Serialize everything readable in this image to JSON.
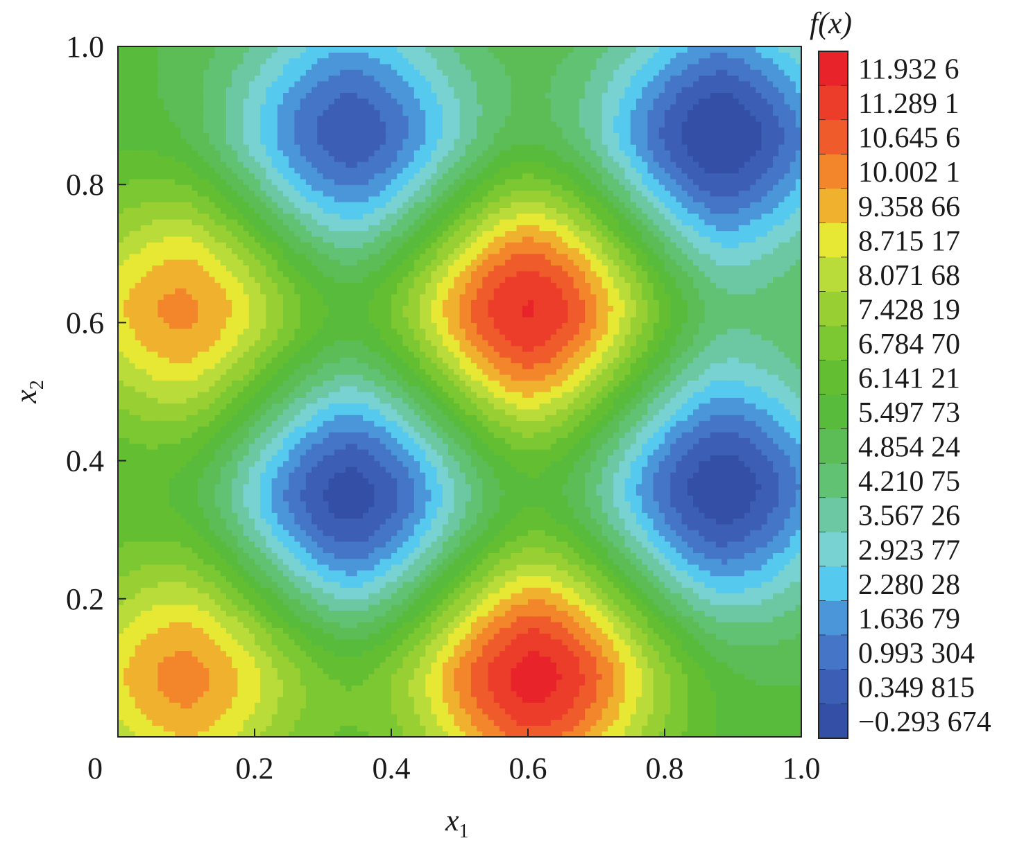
{
  "chart_data": {
    "type": "heatmap",
    "title": "",
    "xlabel": {
      "main": "x",
      "sub": "1"
    },
    "ylabel": {
      "main": "x",
      "sub": "2"
    },
    "colorbar_title": "f(x)",
    "xlim": [
      0,
      1.0
    ],
    "ylim": [
      0,
      1.0
    ],
    "x_ticks": [
      {
        "value": 0,
        "label": "0"
      },
      {
        "value": 0.2,
        "label": "0.2"
      },
      {
        "value": 0.4,
        "label": "0.4"
      },
      {
        "value": 0.6,
        "label": "0.6"
      },
      {
        "value": 0.8,
        "label": "0.8"
      },
      {
        "value": 1.0,
        "label": "1.0"
      }
    ],
    "y_ticks": [
      {
        "value": 0.2,
        "label": "0.2"
      },
      {
        "value": 0.4,
        "label": "0.4"
      },
      {
        "value": 0.6,
        "label": "0.6"
      },
      {
        "value": 0.8,
        "label": "0.8"
      },
      {
        "value": 1.0,
        "label": "1.0"
      }
    ],
    "colorbar_levels": [
      {
        "value": 11.9326,
        "label": "11.932 6",
        "color": "#e8242a"
      },
      {
        "value": 11.2891,
        "label": "11.289 1",
        "color": "#ec3d2b"
      },
      {
        "value": 10.6456,
        "label": "10.645 6",
        "color": "#ef5b2a"
      },
      {
        "value": 10.0021,
        "label": "10.002 1",
        "color": "#f3852b"
      },
      {
        "value": 9.35866,
        "label": "9.358 66",
        "color": "#f0b22e"
      },
      {
        "value": 8.71517,
        "label": "8.715 17",
        "color": "#e7e834"
      },
      {
        "value": 8.07168,
        "label": "8.071 68",
        "color": "#b9dc3a"
      },
      {
        "value": 7.42819,
        "label": "7.428 19",
        "color": "#98cf33"
      },
      {
        "value": 6.7847,
        "label": "6.784 70",
        "color": "#7cc832"
      },
      {
        "value": 6.14121,
        "label": "6.141 21",
        "color": "#63bf31"
      },
      {
        "value": 5.49773,
        "label": "5.497 73",
        "color": "#59bb3c"
      },
      {
        "value": 4.85424,
        "label": "4.854 24",
        "color": "#5cbc55"
      },
      {
        "value": 4.21075,
        "label": "4.210 75",
        "color": "#60c272"
      },
      {
        "value": 3.56726,
        "label": "3.567 26",
        "color": "#6cc8a2"
      },
      {
        "value": 2.92377,
        "label": "2.923 77",
        "color": "#78d2d2"
      },
      {
        "value": 2.28028,
        "label": "2.280 28",
        "color": "#56c9ee"
      },
      {
        "value": 1.63679,
        "label": "1.636 79",
        "color": "#4a96d8"
      },
      {
        "value": 0.993304,
        "label": "0.993 304",
        "color": "#4475c6"
      },
      {
        "value": 0.349815,
        "label": "0.349 815",
        "color": "#3c5fb5"
      },
      {
        "value": -0.293674,
        "label": "−0.293 674",
        "color": "#3450a6"
      }
    ],
    "peaks": [
      {
        "x": 0.6,
        "y": 0.62,
        "value": 12.2
      },
      {
        "x": 0.61,
        "y": 0.09,
        "value": 12.3
      },
      {
        "x": 0.1,
        "y": 0.62,
        "value": 10.3
      },
      {
        "x": 0.1,
        "y": 0.09,
        "value": 10.3
      },
      {
        "x": 0.34,
        "y": 0.35,
        "value": -0.2
      },
      {
        "x": 0.88,
        "y": 0.36,
        "value": -0.2
      },
      {
        "x": 0.88,
        "y": 0.87,
        "value": -0.3
      },
      {
        "x": 0.34,
        "y": 0.87,
        "value": 0.4
      }
    ],
    "legend": "right"
  }
}
